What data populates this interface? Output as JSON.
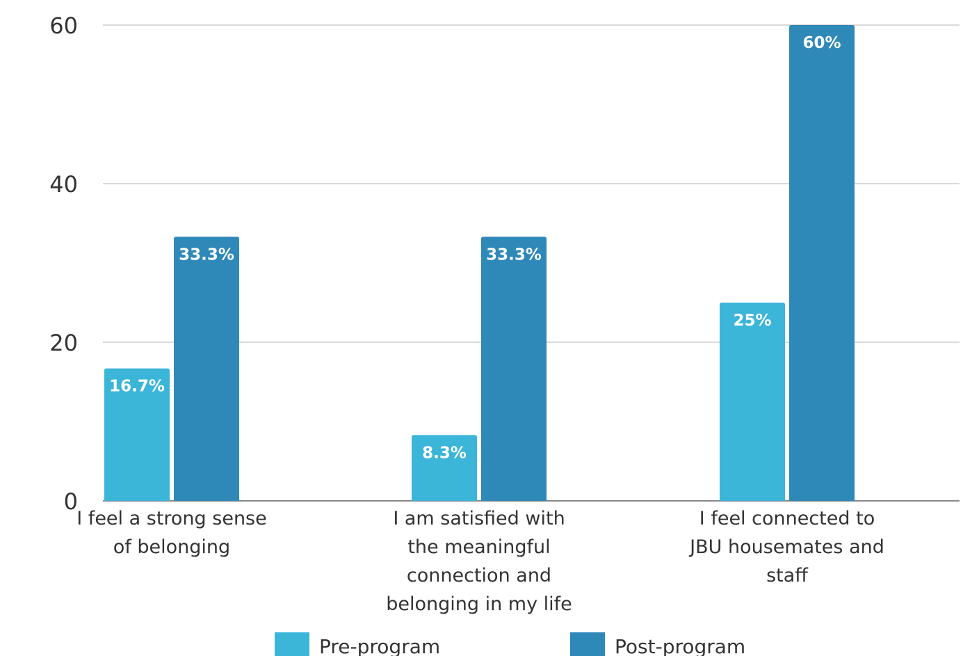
{
  "chart_data": {
    "type": "bar",
    "categories": [
      [
        "I feel a strong sense",
        "of belonging"
      ],
      [
        "I am satisfied with",
        "the meaningful",
        "connection and",
        "belonging in my life"
      ],
      [
        "I feel connected to",
        "JBU housemates and",
        "staff"
      ]
    ],
    "series": [
      {
        "name": "Pre-program",
        "values": [
          16.7,
          8.3,
          25
        ],
        "labels": [
          "16.7%",
          "8.3%",
          "25%"
        ],
        "color": "#3bb5d8"
      },
      {
        "name": "Post-program",
        "values": [
          33.3,
          33.3,
          60
        ],
        "labels": [
          "33.3%",
          "33.3%",
          "60%"
        ],
        "color": "#2e88b8"
      }
    ],
    "ylim": [
      0,
      60
    ],
    "yticks": [
      0,
      20,
      40,
      60
    ],
    "grid": true,
    "legend": "bottom-center"
  }
}
